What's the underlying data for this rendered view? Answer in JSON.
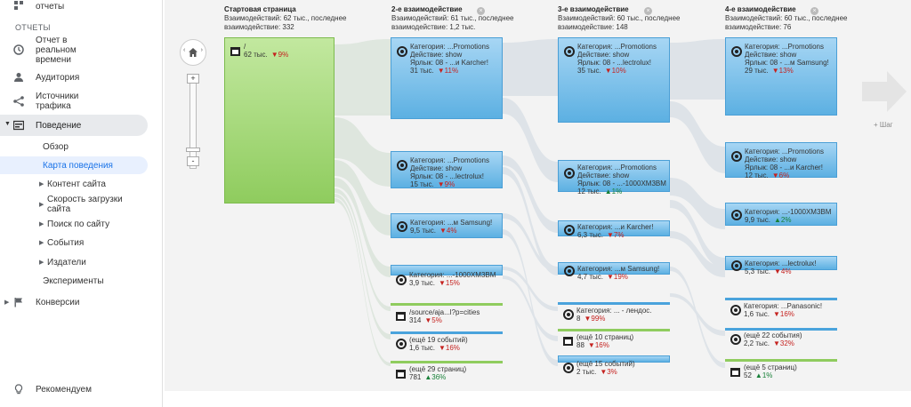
{
  "sidebar": {
    "top_item": "отчеты",
    "section": "ОТЧЕТЫ",
    "items": [
      {
        "key": "realtime",
        "label": "Отчет в реальном времени",
        "icon": "clock-icon"
      },
      {
        "key": "audience",
        "label": "Аудитория",
        "icon": "person-icon"
      },
      {
        "key": "acquisition",
        "label": "Источники трафика",
        "icon": "acquisition-icon"
      },
      {
        "key": "behavior",
        "label": "Поведение",
        "icon": "behavior-icon"
      },
      {
        "key": "conversions",
        "label": "Конверсии",
        "icon": "flag-icon"
      }
    ],
    "behavior_sub": {
      "overview": "Обзор",
      "flow": "Карта поведения",
      "site_content": "Контент сайта",
      "site_speed": "Скорость загрузки сайта",
      "site_search": "Поиск по сайту",
      "events": "События",
      "publishers": "Издатели",
      "experiments": "Эксперименты"
    },
    "recommend": "Рекомендуем"
  },
  "columns": [
    {
      "title": "Стартовая страница",
      "line1": "Взаимодействий: 62 тыс., последнее",
      "line2": "взаимодействие: 332"
    },
    {
      "title": "2-е взаимодействие",
      "line1": "Взаимодействий: 61 тыс., последнее",
      "line2": "взаимодействие: 1,2 тыс."
    },
    {
      "title": "3-е взаимодействие",
      "line1": "Взаимодействий: 60 тыс., последнее",
      "line2": "взаимодействие: 148"
    },
    {
      "title": "4-е взаимодействие",
      "line1": "Взаимодействий: 60 тыс., последнее",
      "line2": "взаимодействие: 76"
    }
  ],
  "start_node": {
    "label": "/",
    "value": "62 тыс.",
    "pct": "▼9%"
  },
  "nodes": {
    "c2n1": {
      "l1": "Категория: ...Promotions",
      "l2": "Действие: show",
      "l3": "Ярлык: 08 - ...и Karcher!",
      "value": "31 тыс.",
      "pct": "▼11%"
    },
    "c2n2": {
      "l1": "Категория: ...Promotions",
      "l2": "Действие: show",
      "l3": "Ярлык: 08 - ...lectrolux!",
      "value": "15 тыс.",
      "pct": "▼9%"
    },
    "c2n3": {
      "l1": "Категория: ...м Samsung!",
      "value": "9,5 тыс.",
      "pct": "▼4%"
    },
    "c2n4": {
      "l1": "Категория: ...-1000XM3BM",
      "value": "3,9 тыс.",
      "pct": "▼15%"
    },
    "c2n5": {
      "l1": "/source/aja...l?p=cities",
      "value": "314",
      "pct": "▼5%"
    },
    "c2n6": {
      "l1": "(ещё 19 событий)",
      "value": "1,6 тыс.",
      "pct": "▼16%"
    },
    "c2n7": {
      "l1": "(ещё 29 страниц)",
      "value": "781",
      "pct": "▲36%"
    },
    "c3n1": {
      "l1": "Категория: ...Promotions",
      "l2": "Действие: show",
      "l3": "Ярлык: 08 - ...lectrolux!",
      "value": "35 тыс.",
      "pct": "▼10%"
    },
    "c3n2": {
      "l1": "Категория: ...Promotions",
      "l2": "Действие: show",
      "l3": "Ярлык: 08 - ...-1000XM3BM",
      "value": "12 тыс.",
      "pct": "▲1%"
    },
    "c3n3": {
      "l1": "Категория: ...и Karcher!",
      "value": "6,3 тыс.",
      "pct": "▼7%"
    },
    "c3n4": {
      "l1": "Категория: ...м Samsung!",
      "value": "4,7 тыс.",
      "pct": "▼19%"
    },
    "c3n5": {
      "l1": "Категория: ... - лендос.",
      "value": "8",
      "pct": "▼99%"
    },
    "c3n6": {
      "l1": "(ещё 10 страниц)",
      "value": "88",
      "pct": "▼16%"
    },
    "c3n7": {
      "l1": "(ещё 15 событий)",
      "value": "2 тыс.",
      "pct": "▼3%"
    },
    "c4n1": {
      "l1": "Категория: ...Promotions",
      "l2": "Действие: show",
      "l3": "Ярлык: 08 - ...м Samsung!",
      "value": "29 тыс.",
      "pct": "▼13%"
    },
    "c4n2": {
      "l1": "Категория: ...Promotions",
      "l2": "Действие: show",
      "l3": "Ярлык: 08 - ...и Karcher!",
      "value": "12 тыс.",
      "pct": "▼6%"
    },
    "c4n3": {
      "l1": "Категория: ...-1000XM3BM",
      "value": "9,9 тыс.",
      "pct": "▲2%"
    },
    "c4n4": {
      "l1": "Категория: ...lectrolux!",
      "value": "5,3 тыс.",
      "pct": "▼4%"
    },
    "c4n5": {
      "l1": "Категория: ...Panasonic!",
      "value": "1,6 тыс.",
      "pct": "▼16%"
    },
    "c4n6": {
      "l1": "(ещё 22 события)",
      "value": "2,2 тыс.",
      "pct": "▼32%"
    },
    "c4n7": {
      "l1": "(ещё 5 страниц)",
      "value": "52",
      "pct": "▲1%"
    }
  },
  "add_step": "+ Шаг",
  "colors": {
    "accent": "#1a73e8",
    "node_blue": "#5cb0e2",
    "node_green": "#8fcc5e",
    "down": "#c5221f",
    "up": "#188038"
  }
}
